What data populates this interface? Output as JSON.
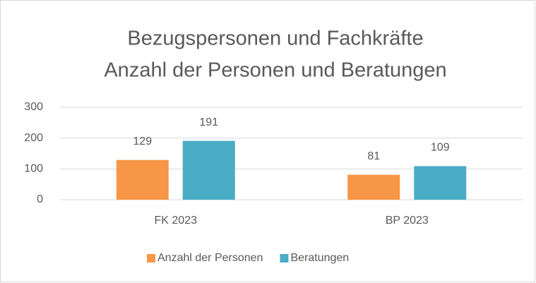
{
  "chart_data": {
    "type": "bar",
    "title": "Bezugspersonen und Fachkräfte",
    "subtitle": "Anzahl der Personen und Beratungen",
    "categories": [
      "FK 2023",
      "BP 2023"
    ],
    "series": [
      {
        "name": "Anzahl der Personen",
        "color": "#F79646",
        "values": [
          129,
          81
        ]
      },
      {
        "name": "Beratungen",
        "color": "#4BACC6",
        "values": [
          191,
          109
        ]
      }
    ],
    "ylim": [
      0,
      300
    ],
    "yticks": [
      0,
      100,
      200,
      300
    ],
    "grid": true,
    "legend": "bottom"
  }
}
